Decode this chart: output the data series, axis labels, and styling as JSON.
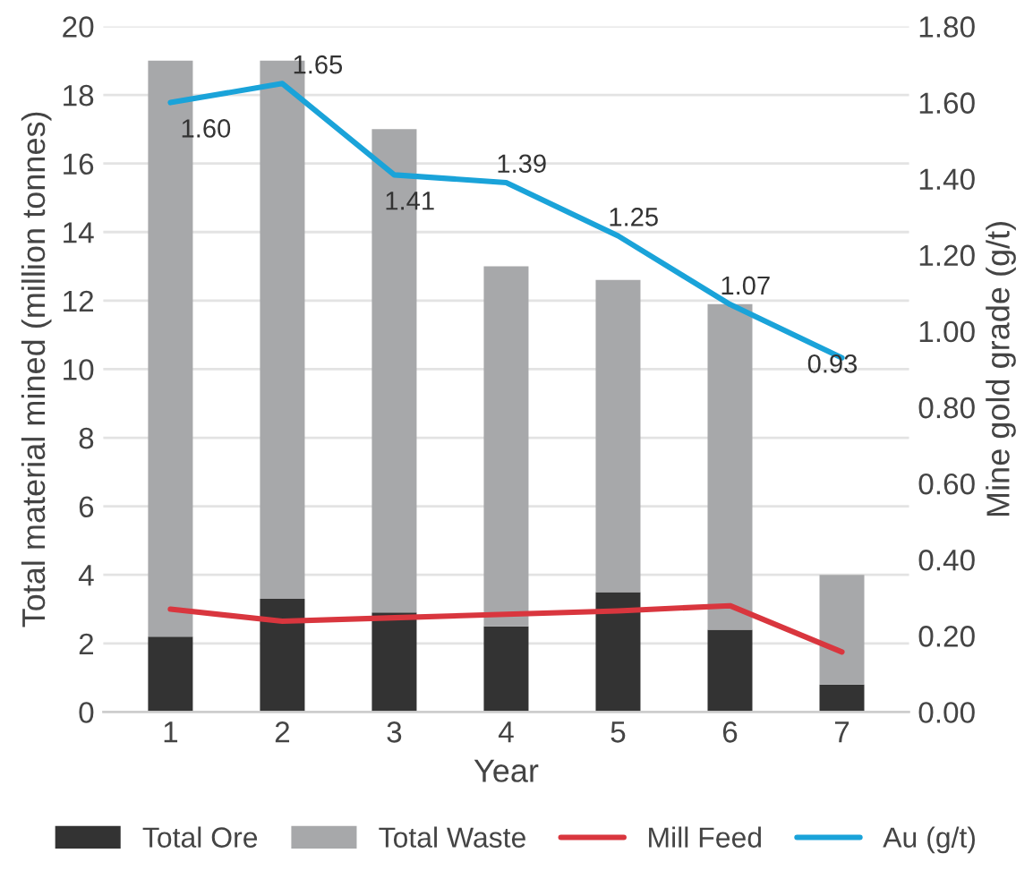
{
  "chart_data": {
    "type": "bar",
    "stacked": true,
    "xlabel": "Year",
    "ylabel": "Total material mined (million tonnes)",
    "y2label": "Mine gold grade (g/t)",
    "categories": [
      "1",
      "2",
      "3",
      "4",
      "5",
      "6",
      "7"
    ],
    "series": [
      {
        "name": "Total Ore",
        "color": "#333333",
        "values": [
          2.2,
          3.3,
          2.9,
          2.5,
          3.5,
          2.4,
          0.8
        ]
      },
      {
        "name": "Total Waste",
        "color": "#a7a8aa",
        "values": [
          16.8,
          15.7,
          14.1,
          10.5,
          9.1,
          9.5,
          3.2
        ]
      },
      {
        "name": "Mill Feed",
        "type": "line",
        "color": "#d9363e",
        "values": [
          3.0,
          2.65,
          2.75,
          2.85,
          2.95,
          3.1,
          1.75
        ]
      },
      {
        "name": "Au (g/t)",
        "type": "line",
        "axis": "y2",
        "color": "#1aa3d9",
        "values": [
          1.6,
          1.65,
          1.41,
          1.39,
          1.25,
          1.07,
          0.93
        ],
        "value_labels": [
          "1.60",
          "1.65",
          "1.41",
          "1.39",
          "1.25",
          "1.07",
          "0.93"
        ]
      }
    ],
    "ylim": [
      0,
      20
    ],
    "yticks": [
      0,
      2,
      4,
      6,
      8,
      10,
      12,
      14,
      16,
      18,
      20
    ],
    "y2lim": [
      0,
      1.8
    ],
    "y2ticks": [
      {
        "value": 0,
        "label": "0.00"
      },
      {
        "value": 0.2,
        "label": "0.20"
      },
      {
        "value": 0.4,
        "label": "0.40"
      },
      {
        "value": 0.6,
        "label": "0.60"
      },
      {
        "value": 0.8,
        "label": "0.80"
      },
      {
        "value": 1.0,
        "label": "1.00"
      },
      {
        "value": 1.2,
        "label": "1.20"
      },
      {
        "value": 1.4,
        "label": "1.40"
      },
      {
        "value": 1.6,
        "label": "1.60"
      },
      {
        "value": 1.8,
        "label": "1.80"
      }
    ],
    "grid": "y",
    "legend": "bottom"
  }
}
